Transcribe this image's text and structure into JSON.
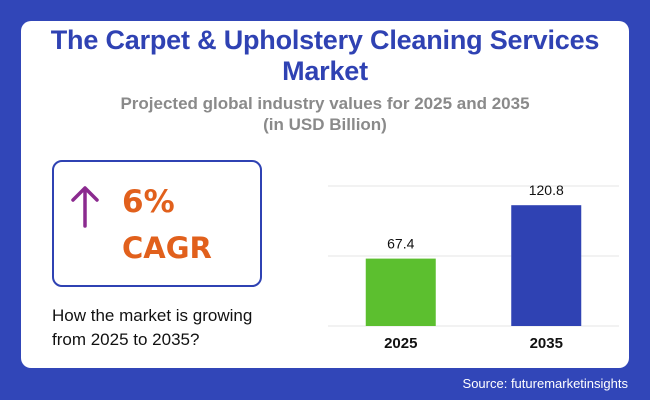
{
  "title": "The Carpet & Upholstery Cleaning Services Market",
  "subtitle_line1": "Projected global industry values for 2025 and 2035",
  "subtitle_line2": "(in USD Billion)",
  "cagr": {
    "value": "6%",
    "label": "CAGR",
    "icon": "arrow-up-icon",
    "color": "#e1601c",
    "arrow_color": "#8b2a8f"
  },
  "question_line1": "How the market is growing",
  "question_line2": "from 2025 to 2035?",
  "source": "Source: futuremarketinsights",
  "colors": {
    "background": "#3146b8",
    "title": "#2f42b3",
    "subtitle": "#8a8a8a"
  },
  "chart_data": {
    "type": "bar",
    "categories": [
      "2025",
      "2035"
    ],
    "values": [
      67.4,
      120.8
    ],
    "value_labels": [
      "67.4",
      "120.8"
    ],
    "colors": [
      "#5cbf2f",
      "#2f42b3"
    ],
    "ylim": [
      0,
      140
    ],
    "grid": true,
    "title": "",
    "xlabel": "",
    "ylabel": ""
  }
}
